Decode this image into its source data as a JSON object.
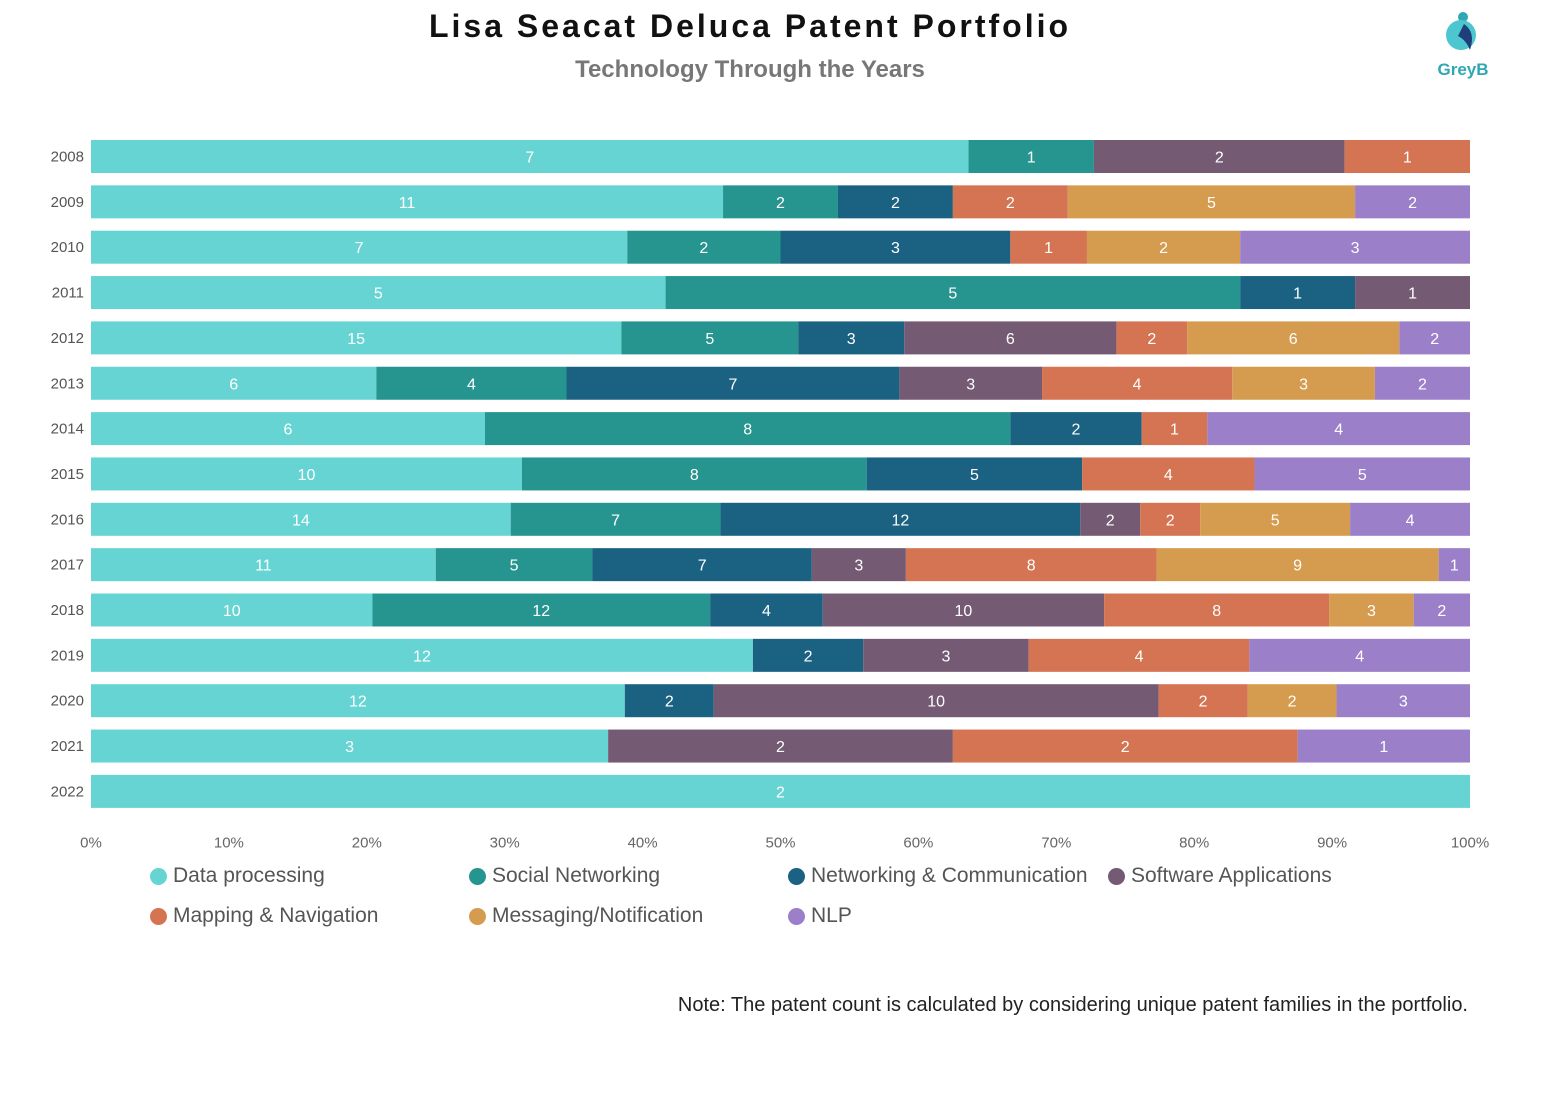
{
  "header": {
    "title": "Lisa Seacat Deluca Patent Portfolio",
    "subtitle": "Technology Through the Years"
  },
  "logo": {
    "text": "GreyB",
    "color": "#2fa7b5"
  },
  "note": "Note: The patent count is calculated by considering unique patent families in the portfolio.",
  "chart_data": {
    "type": "bar",
    "orientation": "horizontal",
    "stacked": "percent",
    "title": "Lisa Seacat Deluca Patent Portfolio",
    "subtitle": "Technology Through the Years",
    "categories": [
      "2008",
      "2009",
      "2010",
      "2011",
      "2012",
      "2013",
      "2014",
      "2015",
      "2016",
      "2017",
      "2018",
      "2019",
      "2020",
      "2021",
      "2022"
    ],
    "x_ticks": [
      "0%",
      "10%",
      "20%",
      "30%",
      "40%",
      "50%",
      "60%",
      "70%",
      "80%",
      "90%",
      "100%"
    ],
    "xlim": [
      0,
      100
    ],
    "grid": false,
    "legend_position": "bottom",
    "series": [
      {
        "name": "Data processing",
        "color": "#67d4d4",
        "values": [
          7,
          11,
          7,
          5,
          15,
          6,
          6,
          10,
          14,
          11,
          10,
          12,
          12,
          3,
          2
        ]
      },
      {
        "name": "Social Networking",
        "color": "#26958f",
        "values": [
          1,
          2,
          2,
          5,
          5,
          4,
          8,
          8,
          7,
          5,
          12,
          0,
          0,
          0,
          0
        ]
      },
      {
        "name": "Networking & Communication",
        "color": "#1b6282",
        "values": [
          0,
          2,
          3,
          1,
          3,
          7,
          2,
          5,
          12,
          7,
          4,
          2,
          2,
          0,
          0
        ]
      },
      {
        "name": "Software Applications",
        "color": "#745a73",
        "values": [
          2,
          0,
          0,
          1,
          6,
          3,
          0,
          0,
          2,
          3,
          10,
          3,
          10,
          2,
          0
        ]
      },
      {
        "name": "Mapping & Navigation",
        "color": "#d57452",
        "values": [
          1,
          2,
          1,
          0,
          2,
          4,
          1,
          4,
          2,
          8,
          8,
          4,
          2,
          2,
          0
        ]
      },
      {
        "name": "Messaging/Notification",
        "color": "#d59b4e",
        "values": [
          0,
          5,
          2,
          0,
          6,
          3,
          0,
          0,
          5,
          9,
          3,
          0,
          2,
          0,
          0
        ]
      },
      {
        "name": "NLP",
        "color": "#9b7fc9",
        "values": [
          0,
          2,
          3,
          0,
          2,
          2,
          4,
          5,
          4,
          1,
          2,
          4,
          3,
          1,
          0
        ]
      }
    ]
  }
}
